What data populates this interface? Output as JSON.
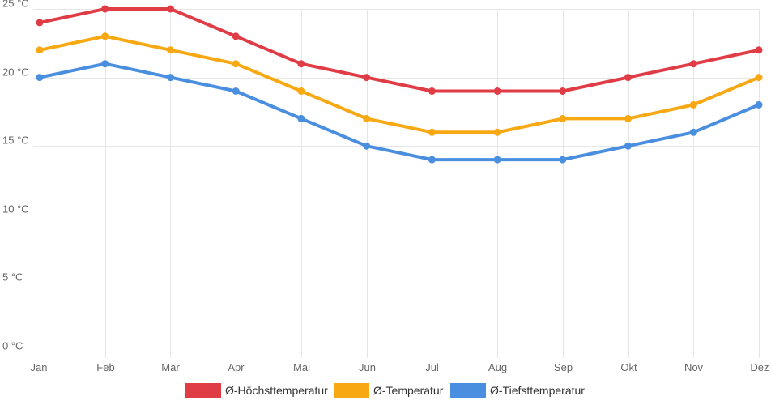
{
  "chart_data": {
    "type": "line",
    "title": "",
    "xlabel": "",
    "ylabel": "",
    "categories": [
      "Jan",
      "Feb",
      "Mär",
      "Apr",
      "Mai",
      "Jun",
      "Jul",
      "Aug",
      "Sep",
      "Okt",
      "Nov",
      "Dez"
    ],
    "ylim": [
      0,
      25
    ],
    "yticks": [
      {
        "value": 0,
        "label": "0 °C"
      },
      {
        "value": 5,
        "label": "5 °C"
      },
      {
        "value": 10,
        "label": "10 °C"
      },
      {
        "value": 15,
        "label": "15 °C"
      },
      {
        "value": 20,
        "label": "20 °C"
      },
      {
        "value": 25,
        "label": "25 °C"
      }
    ],
    "grid": true,
    "legend_position": "bottom",
    "series": [
      {
        "name": "Ø-Höchsttemperatur",
        "color": "#e03c46",
        "values": [
          24,
          25,
          25,
          23,
          21,
          20,
          19,
          19,
          19,
          20,
          21,
          22
        ]
      },
      {
        "name": "Ø-Temperatur",
        "color": "#f8a812",
        "values": [
          22,
          23,
          22,
          21,
          19,
          17,
          16,
          16,
          17,
          17,
          18,
          20
        ]
      },
      {
        "name": "Ø-Tiefsttemperatur",
        "color": "#4a8ee0",
        "values": [
          20,
          21,
          20,
          19,
          17,
          15,
          14,
          14,
          14,
          15,
          16,
          18
        ]
      }
    ]
  }
}
